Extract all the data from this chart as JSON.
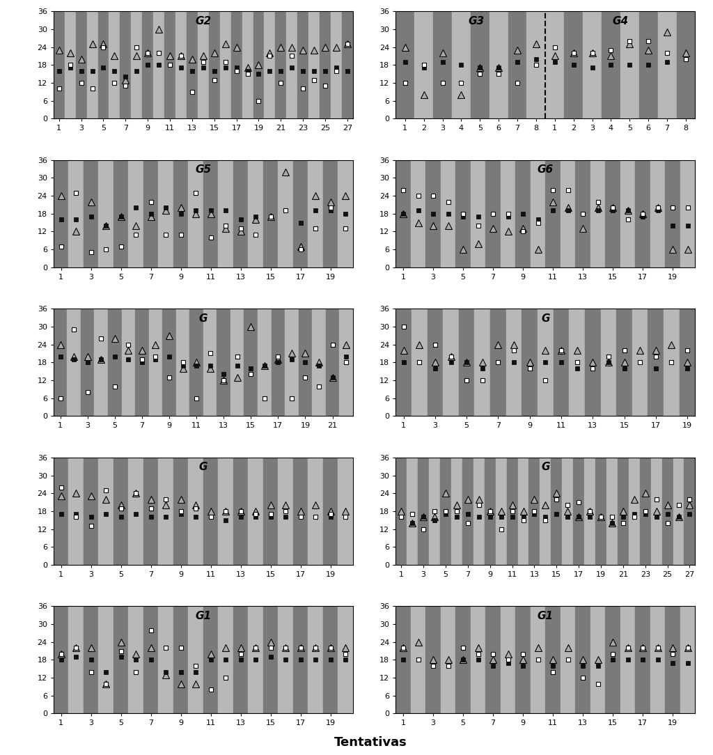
{
  "subplots": [
    {
      "label": "G2",
      "x_ticks": [
        1,
        3,
        5,
        7,
        9,
        11,
        13,
        15,
        17,
        19,
        21,
        23,
        25,
        27
      ],
      "n": 27,
      "tri": [
        23,
        22,
        20,
        25,
        25,
        21,
        13,
        21,
        22,
        30,
        21,
        21,
        20,
        21,
        22,
        25,
        24,
        17,
        18,
        22,
        24,
        24,
        23,
        23,
        24,
        24,
        25
      ],
      "black": [
        16,
        17,
        16,
        16,
        17,
        16,
        14,
        16,
        18,
        18,
        18,
        17,
        16,
        17,
        16,
        17,
        17,
        16,
        15,
        16,
        16,
        17,
        16,
        16,
        16,
        17,
        16
      ],
      "white": [
        10,
        18,
        12,
        10,
        24,
        12,
        11,
        24,
        22,
        22,
        18,
        21,
        9,
        19,
        13,
        19,
        16,
        15,
        6,
        21,
        12,
        21,
        10,
        13,
        11,
        16,
        25
      ],
      "row": 0,
      "col": 0
    },
    {
      "label": "G3",
      "x_ticks": [
        1,
        2,
        3,
        4,
        5,
        6,
        7,
        8
      ],
      "n": 8,
      "tri": [
        24,
        8,
        22,
        8,
        17,
        17,
        23,
        25
      ],
      "black": [
        19,
        17,
        19,
        18,
        17,
        17,
        19,
        20
      ],
      "white": [
        12,
        18,
        12,
        12,
        15,
        15,
        12,
        18
      ],
      "row": 0,
      "col": 1,
      "split": true,
      "sub_col": 0
    },
    {
      "label": "G4",
      "x_ticks": [
        1,
        2,
        3,
        4,
        5,
        6,
        7,
        8
      ],
      "n": 8,
      "tri": [
        21,
        22,
        22,
        21,
        25,
        23,
        29,
        22
      ],
      "black": [
        19,
        18,
        17,
        18,
        18,
        18,
        19,
        20
      ],
      "white": [
        24,
        22,
        22,
        23,
        26,
        26,
        22,
        20
      ],
      "row": 0,
      "col": 1,
      "split": true,
      "sub_col": 1
    },
    {
      "label": "G5",
      "x_ticks": [
        1,
        3,
        5,
        7,
        9,
        11,
        13,
        15,
        17,
        19
      ],
      "n": 20,
      "tri": [
        24,
        12,
        22,
        14,
        17,
        14,
        17,
        19,
        20,
        18,
        18,
        13,
        12,
        16,
        17,
        32,
        7,
        24,
        22,
        24
      ],
      "black": [
        16,
        16,
        17,
        14,
        17,
        20,
        18,
        20,
        18,
        19,
        19,
        19,
        16,
        17,
        17,
        19,
        15,
        19,
        19,
        18
      ],
      "white": [
        7,
        25,
        5,
        6,
        7,
        11,
        22,
        11,
        11,
        25,
        10,
        14,
        13,
        11,
        17,
        19,
        6,
        13,
        20,
        13
      ],
      "row": 1,
      "col": 0
    },
    {
      "label": "G6",
      "x_ticks": [
        1,
        3,
        5,
        7,
        9,
        11,
        13,
        15,
        17,
        19
      ],
      "n": 20,
      "tri": [
        18,
        15,
        14,
        14,
        6,
        8,
        13,
        12,
        13,
        6,
        22,
        20,
        13,
        20,
        20,
        19,
        18,
        20,
        6,
        6
      ],
      "black": [
        18,
        19,
        18,
        18,
        17,
        17,
        18,
        17,
        18,
        16,
        19,
        19,
        18,
        19,
        19,
        19,
        17,
        19,
        14,
        14
      ],
      "white": [
        26,
        24,
        24,
        22,
        18,
        14,
        18,
        18,
        12,
        15,
        26,
        26,
        18,
        22,
        20,
        16,
        18,
        20,
        20,
        20
      ],
      "row": 1,
      "col": 1
    },
    {
      "label": "G",
      "x_ticks": [
        1,
        3,
        5,
        7,
        9,
        11,
        13,
        15,
        17,
        19,
        21
      ],
      "n": 22,
      "tri": [
        24,
        20,
        20,
        19,
        26,
        22,
        22,
        24,
        27,
        16,
        18,
        16,
        12,
        13,
        30,
        17,
        19,
        21,
        21,
        18,
        13,
        24
      ],
      "black": [
        20,
        19,
        18,
        19,
        20,
        19,
        18,
        19,
        20,
        17,
        17,
        17,
        14,
        17,
        16,
        17,
        18,
        19,
        18,
        17,
        13,
        20
      ],
      "white": [
        6,
        29,
        8,
        26,
        10,
        24,
        19,
        20,
        13,
        18,
        6,
        21,
        12,
        20,
        14,
        6,
        20,
        6,
        13,
        10,
        24,
        18
      ],
      "row": 2,
      "col": 0
    },
    {
      "label": "G",
      "x_ticks": [
        1,
        3,
        5,
        7,
        9,
        11,
        13,
        15,
        17,
        19
      ],
      "n": 19,
      "tri": [
        22,
        24,
        18,
        20,
        18,
        18,
        24,
        24,
        18,
        22,
        22,
        22,
        18,
        18,
        18,
        22,
        22,
        24,
        18
      ],
      "black": [
        18,
        18,
        16,
        18,
        18,
        16,
        18,
        18,
        16,
        18,
        18,
        16,
        16,
        18,
        16,
        18,
        16,
        18,
        16
      ],
      "white": [
        30,
        18,
        24,
        20,
        12,
        12,
        18,
        22,
        16,
        12,
        22,
        18,
        16,
        20,
        22,
        18,
        20,
        18,
        22
      ],
      "row": 2,
      "col": 1
    },
    {
      "label": "G",
      "x_ticks": [
        1,
        3,
        5,
        7,
        9,
        11,
        13,
        15,
        17,
        19
      ],
      "n": 20,
      "tri": [
        23,
        24,
        23,
        22,
        20,
        24,
        22,
        20,
        22,
        20,
        18,
        18,
        18,
        18,
        20,
        20,
        18,
        20,
        18,
        18
      ],
      "black": [
        17,
        17,
        16,
        17,
        16,
        17,
        16,
        16,
        17,
        16,
        16,
        15,
        16,
        16,
        16,
        16,
        16,
        16,
        16,
        16
      ],
      "white": [
        26,
        16,
        13,
        25,
        19,
        24,
        19,
        22,
        18,
        19,
        16,
        18,
        18,
        17,
        17,
        18,
        16,
        16,
        17,
        16
      ],
      "row": 3,
      "col": 0
    },
    {
      "label": "G",
      "x_ticks": [
        1,
        3,
        5,
        7,
        9,
        11,
        13,
        15,
        17,
        19,
        21,
        23,
        25,
        27
      ],
      "n": 27,
      "tri": [
        18,
        14,
        16,
        16,
        24,
        20,
        22,
        22,
        18,
        18,
        20,
        18,
        22,
        20,
        24,
        18,
        16,
        18,
        16,
        14,
        18,
        22,
        24,
        18,
        20,
        16,
        20
      ],
      "black": [
        16,
        14,
        16,
        15,
        17,
        16,
        17,
        16,
        16,
        16,
        16,
        16,
        17,
        16,
        17,
        16,
        16,
        16,
        16,
        14,
        16,
        17,
        17,
        16,
        17,
        16,
        17
      ],
      "white": [
        16,
        17,
        12,
        18,
        18,
        18,
        14,
        20,
        18,
        12,
        18,
        15,
        18,
        15,
        22,
        20,
        21,
        18,
        16,
        16,
        14,
        16,
        18,
        22,
        14,
        20,
        22
      ],
      "row": 3,
      "col": 1
    },
    {
      "label": "G1",
      "x_ticks": [
        1,
        3,
        5,
        7,
        9,
        11,
        13,
        15,
        17,
        19
      ],
      "n": 20,
      "tri": [
        20,
        22,
        22,
        10,
        24,
        20,
        22,
        13,
        10,
        10,
        20,
        22,
        22,
        22,
        24,
        22,
        22,
        22,
        22,
        22
      ],
      "black": [
        18,
        19,
        18,
        14,
        19,
        18,
        18,
        14,
        14,
        14,
        18,
        18,
        18,
        18,
        19,
        18,
        18,
        18,
        18,
        18
      ],
      "white": [
        20,
        22,
        14,
        10,
        21,
        14,
        28,
        22,
        22,
        16,
        8,
        12,
        20,
        22,
        22,
        22,
        22,
        22,
        22,
        20
      ],
      "row": 4,
      "col": 0
    },
    {
      "label": "G1",
      "x_ticks": [
        1,
        3,
        5,
        7,
        9,
        11,
        13,
        15,
        17,
        19
      ],
      "n": 20,
      "tri": [
        22,
        24,
        18,
        18,
        18,
        22,
        18,
        20,
        18,
        22,
        18,
        22,
        18,
        18,
        24,
        22,
        22,
        22,
        22,
        22
      ],
      "black": [
        18,
        18,
        16,
        16,
        18,
        18,
        16,
        17,
        16,
        18,
        16,
        18,
        16,
        16,
        18,
        18,
        18,
        18,
        17,
        17
      ],
      "white": [
        22,
        18,
        16,
        16,
        22,
        20,
        20,
        18,
        20,
        18,
        14,
        18,
        12,
        10,
        20,
        22,
        22,
        22,
        20,
        22
      ],
      "row": 4,
      "col": 1
    }
  ],
  "ylim": [
    0,
    36
  ],
  "yticks": [
    0,
    6,
    12,
    18,
    24,
    30,
    36
  ],
  "bg_dark": "#7a7a7a",
  "bg_light": "#b8b8b8",
  "tri_color": "#aaaaaa",
  "black_color": "#111111",
  "xlabel": "Tentativas",
  "xlabel_fontsize": 13,
  "label_fontsize": 11,
  "tick_fontsize": 8,
  "marker_size_tri": 7,
  "marker_size_sq": 5
}
